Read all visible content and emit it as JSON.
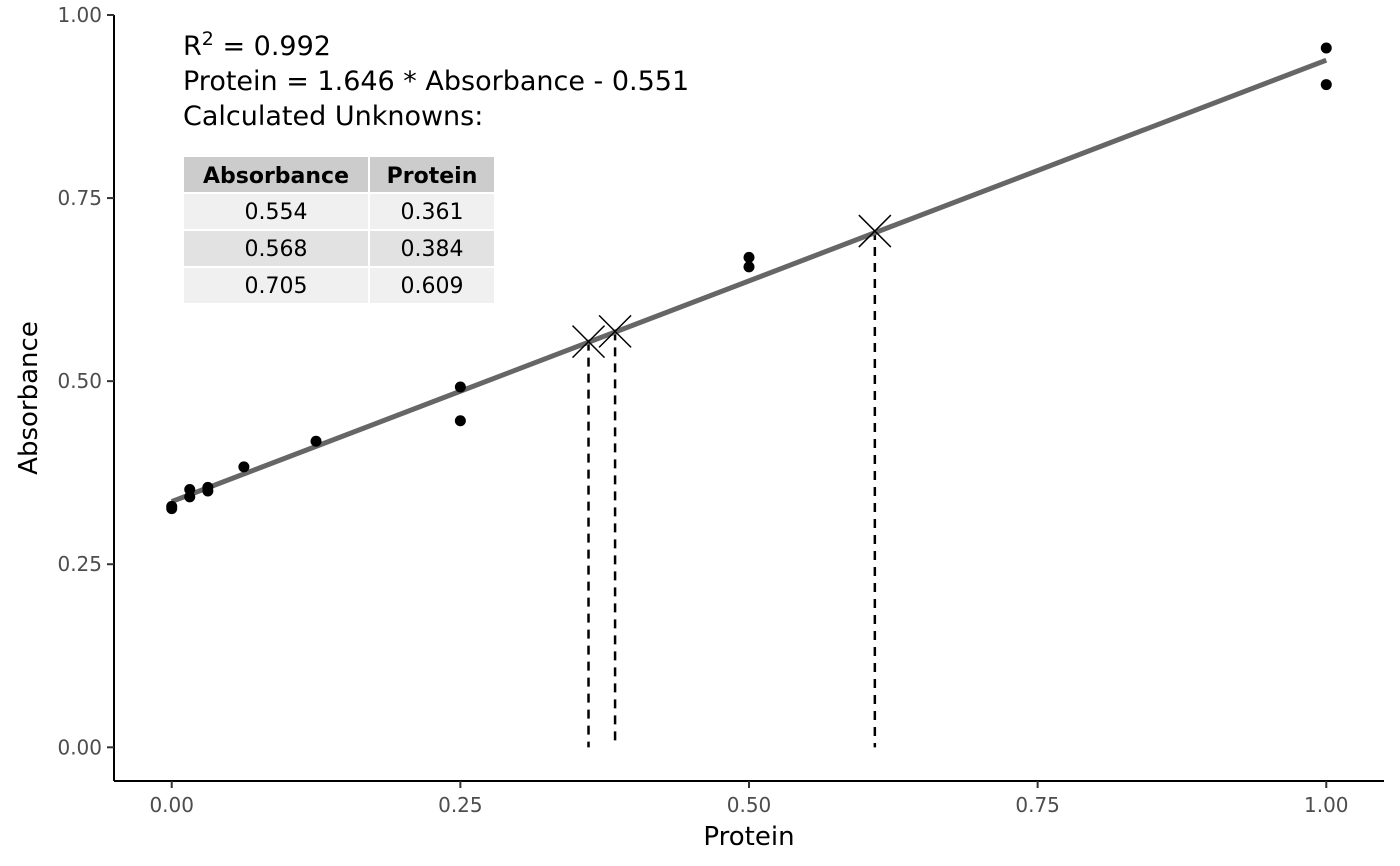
{
  "chart_data": {
    "type": "scatter",
    "xlabel": "Protein",
    "ylabel": "Absorbance",
    "xlim": [
      -0.05,
      1.05
    ],
    "ylim": [
      -0.046,
      1.0
    ],
    "x_ticks": [
      0.0,
      0.25,
      0.5,
      0.75,
      1.0
    ],
    "x_tick_labels": [
      "0.00",
      "0.25",
      "0.50",
      "0.75",
      "1.00"
    ],
    "y_ticks": [
      0.0,
      0.25,
      0.5,
      0.75,
      1.0
    ],
    "y_tick_labels": [
      "0.00",
      "0.25",
      "0.50",
      "0.75",
      "1.00"
    ],
    "grid": false,
    "points": [
      {
        "x": 0.0,
        "y": 0.329
      },
      {
        "x": 0.0,
        "y": 0.326
      },
      {
        "x": 0.0156,
        "y": 0.352
      },
      {
        "x": 0.0156,
        "y": 0.342
      },
      {
        "x": 0.0313,
        "y": 0.355
      },
      {
        "x": 0.0313,
        "y": 0.35
      },
      {
        "x": 0.0625,
        "y": 0.383
      },
      {
        "x": 0.125,
        "y": 0.418
      },
      {
        "x": 0.25,
        "y": 0.492
      },
      {
        "x": 0.25,
        "y": 0.446
      },
      {
        "x": 0.5,
        "y": 0.669
      },
      {
        "x": 0.5,
        "y": 0.656
      },
      {
        "x": 1.0,
        "y": 0.955
      },
      {
        "x": 1.0,
        "y": 0.905
      }
    ],
    "fit_line": {
      "x_start": 0.0,
      "x_end": 1.0,
      "y_start": 0.3356,
      "y_end": 0.9383,
      "color": "#666666"
    },
    "unknowns": [
      {
        "protein": 0.361,
        "absorbance": 0.554
      },
      {
        "protein": 0.384,
        "absorbance": 0.568
      },
      {
        "protein": 0.609,
        "absorbance": 0.705
      }
    ],
    "annotation": {
      "r2_label": "R",
      "r2_sup": "2",
      "r2_value": " = 0.992",
      "equation": "Protein = 1.646 * Absorbance - 0.551",
      "unknowns_title": "Calculated Unknowns:"
    },
    "table": {
      "headers": [
        "Absorbance",
        "Protein"
      ],
      "rows": [
        [
          "0.554",
          "0.361"
        ],
        [
          "0.568",
          "0.384"
        ],
        [
          "0.705",
          "0.609"
        ]
      ]
    }
  }
}
